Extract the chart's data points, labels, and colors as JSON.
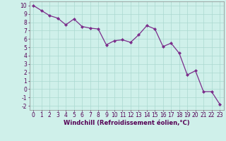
{
  "x": [
    0,
    1,
    2,
    3,
    4,
    5,
    6,
    7,
    8,
    9,
    10,
    11,
    12,
    13,
    14,
    15,
    16,
    17,
    18,
    19,
    20,
    21,
    22,
    23
  ],
  "y": [
    10,
    9.4,
    8.8,
    8.5,
    7.7,
    8.4,
    7.5,
    7.3,
    7.2,
    5.3,
    5.8,
    5.9,
    5.6,
    6.5,
    7.6,
    7.2,
    5.1,
    5.5,
    4.3,
    1.7,
    2.2,
    -0.3,
    -0.3,
    -1.8
  ],
  "line_color": "#7B2D8B",
  "marker": "D",
  "marker_size": 2.0,
  "bg_color": "#cff0ea",
  "grid_color": "#aad8d0",
  "xlabel": "Windchill (Refroidissement éolien,°C)",
  "xlim": [
    -0.5,
    23.5
  ],
  "ylim": [
    -2.5,
    10.5
  ],
  "yticks": [
    -2,
    -1,
    0,
    1,
    2,
    3,
    4,
    5,
    6,
    7,
    8,
    9,
    10
  ],
  "xticks": [
    0,
    1,
    2,
    3,
    4,
    5,
    6,
    7,
    8,
    9,
    10,
    11,
    12,
    13,
    14,
    15,
    16,
    17,
    18,
    19,
    20,
    21,
    22,
    23
  ],
  "tick_fontsize": 5.5,
  "xlabel_fontsize": 6.0,
  "linewidth": 0.9
}
